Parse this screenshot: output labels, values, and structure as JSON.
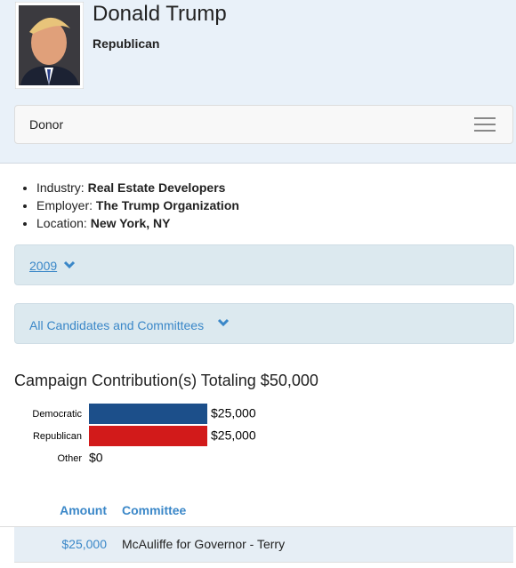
{
  "header": {
    "name": "Donald Trump",
    "party": "Republican"
  },
  "nav": {
    "label": "Donor"
  },
  "details": {
    "items": [
      {
        "label": "Industry:",
        "value": "Real Estate Developers"
      },
      {
        "label": "Employer:",
        "value": "The Trump Organization"
      },
      {
        "label": "Location:",
        "value": "New York, NY"
      }
    ]
  },
  "filters": {
    "year": "2009",
    "scope": "All Candidates and Committees"
  },
  "chart_data": {
    "type": "bar",
    "orientation": "horizontal",
    "title": "Campaign Contribution(s) Totaling $50,000",
    "categories": [
      "Democratic",
      "Republican",
      "Other"
    ],
    "values": [
      25000,
      25000,
      0
    ],
    "value_labels": [
      "$25,000",
      "$25,000",
      "$0"
    ],
    "colors": [
      "#1c4f8a",
      "#d21a1a",
      "#888888"
    ]
  },
  "table": {
    "headers": [
      "Amount",
      "Committee"
    ],
    "rows": [
      [
        "$25,000",
        "McAuliffe for Governor - Terry"
      ]
    ]
  }
}
